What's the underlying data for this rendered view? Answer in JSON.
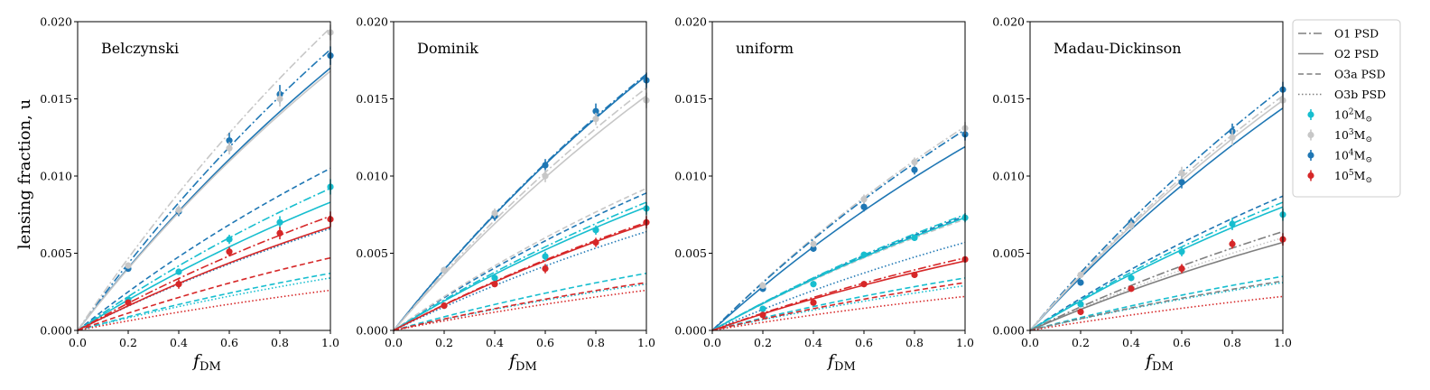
{
  "figure": {
    "ylabel": "lensing fraction, u",
    "xlabel_main": "f",
    "xlabel_sub": "DM"
  },
  "legend": {
    "line_entries": [
      {
        "label": "O1 PSD",
        "style": "dashdot"
      },
      {
        "label": "O2 PSD",
        "style": "solid"
      },
      {
        "label": "O3a PSD",
        "style": "dashed"
      },
      {
        "label": "O3b PSD",
        "style": "dotted"
      }
    ],
    "marker_entries": [
      {
        "base": "10",
        "exp": "2",
        "unit": "M",
        "sub": "⊙",
        "color": "#17becf"
      },
      {
        "base": "10",
        "exp": "3",
        "unit": "M",
        "sub": "⊙",
        "color": "#c7c7c7"
      },
      {
        "base": "10",
        "exp": "4",
        "unit": "M",
        "sub": "⊙",
        "color": "#1f77b4"
      },
      {
        "base": "10",
        "exp": "5",
        "unit": "M",
        "sub": "⊙",
        "color": "#d62728"
      }
    ],
    "line_color": "#7f7f7f"
  },
  "colors": {
    "m2": "#17becf",
    "m3": "#c7c7c7",
    "m4": "#1f77b4",
    "m5": "#d62728",
    "gray": "#7f7f7f"
  },
  "chart_data": [
    {
      "type": "line",
      "title": "Belczynski",
      "xlabel": "f_DM",
      "ylabel": "lensing fraction, u",
      "xlim": [
        0,
        1
      ],
      "ylim": [
        0,
        0.02
      ],
      "xticks": [
        "0.0",
        "0.2",
        "0.4",
        "0.6",
        "0.8",
        "1.0"
      ],
      "yticks": [
        "0.000",
        "0.005",
        "0.010",
        "0.015",
        "0.020"
      ],
      "series": [
        {
          "mass": "1e4",
          "psd": "O1",
          "end": 0.0182
        },
        {
          "mass": "1e4",
          "psd": "O2",
          "end": 0.017
        },
        {
          "mass": "1e4",
          "psd": "O3a",
          "end": 0.0105
        },
        {
          "mass": "1e4",
          "psd": "O3b",
          "end": 0.0066
        },
        {
          "mass": "1e3",
          "psd": "O1",
          "end": 0.0196
        },
        {
          "mass": "1e3",
          "psd": "O2",
          "end": 0.0168
        },
        {
          "mass": "1e2",
          "psd": "O1",
          "end": 0.0092
        },
        {
          "mass": "1e2",
          "psd": "O2",
          "end": 0.0083
        },
        {
          "mass": "1e2",
          "psd": "O3a",
          "end": 0.0037
        },
        {
          "mass": "1e2",
          "psd": "O3b",
          "end": 0.0034
        },
        {
          "mass": "1e5",
          "psd": "O1",
          "end": 0.0074
        },
        {
          "mass": "1e5",
          "psd": "O2",
          "end": 0.0067
        },
        {
          "mass": "1e5",
          "psd": "O3a",
          "end": 0.0047
        },
        {
          "mass": "1e5",
          "psd": "O3b",
          "end": 0.0026
        }
      ],
      "points": [
        {
          "mass": "1e4",
          "x": [
            0.2,
            0.4,
            0.6,
            0.8,
            1.0
          ],
          "y": [
            0.004,
            0.0077,
            0.0123,
            0.0153,
            0.0178
          ],
          "err": [
            0.0002,
            0.0003,
            0.0005,
            0.0006,
            0.0006
          ]
        },
        {
          "mass": "1e3",
          "x": [
            0.2,
            0.4,
            0.6,
            0.8,
            1.0
          ],
          "y": [
            0.0042,
            0.0078,
            0.0118,
            0.015,
            0.0193
          ],
          "err": [
            0.0002,
            0.0003,
            0.0004,
            0.0005,
            0.0005
          ]
        },
        {
          "mass": "1e2",
          "x": [
            0.2,
            0.4,
            0.6,
            0.8,
            1.0
          ],
          "y": [
            0.002,
            0.0038,
            0.0059,
            0.007,
            0.0093
          ],
          "err": [
            0.0002,
            0.0002,
            0.0003,
            0.0004,
            0.0005
          ]
        },
        {
          "mass": "1e5",
          "x": [
            0.2,
            0.4,
            0.6,
            0.8,
            1.0
          ],
          "y": [
            0.0018,
            0.003,
            0.0051,
            0.0063,
            0.0072
          ],
          "err": [
            0.0002,
            0.0003,
            0.0003,
            0.0004,
            0.0005
          ]
        }
      ]
    },
    {
      "type": "line",
      "title": "Dominik",
      "xlabel": "f_DM",
      "ylabel": "",
      "xlim": [
        0,
        1
      ],
      "ylim": [
        0,
        0.02
      ],
      "xticks": [
        "0.0",
        "0.2",
        "0.4",
        "0.6",
        "0.8",
        "1.0"
      ],
      "yticks": [
        "0.000",
        "0.005",
        "0.010",
        "0.015",
        "0.020"
      ],
      "series": [
        {
          "mass": "1e4",
          "psd": "O1",
          "end": 0.0166
        },
        {
          "mass": "1e4",
          "psd": "O2",
          "end": 0.0165
        },
        {
          "mass": "1e4",
          "psd": "O3a",
          "end": 0.0089
        },
        {
          "mass": "1e4",
          "psd": "O3b",
          "end": 0.0064
        },
        {
          "mass": "1e3",
          "psd": "O1",
          "end": 0.0157
        },
        {
          "mass": "1e3",
          "psd": "O2",
          "end": 0.0152
        },
        {
          "mass": "1e3",
          "psd": "O3a",
          "end": 0.0092
        },
        {
          "mass": "1e2",
          "psd": "O1",
          "end": 0.0083
        },
        {
          "mass": "1e2",
          "psd": "O2",
          "end": 0.008
        },
        {
          "mass": "1e2",
          "psd": "O3a",
          "end": 0.0037
        },
        {
          "mass": "1e2",
          "psd": "O3b",
          "end": 0.003
        },
        {
          "mass": "1e5",
          "psd": "O1",
          "end": 0.007
        },
        {
          "mass": "1e5",
          "psd": "O2",
          "end": 0.0069
        },
        {
          "mass": "1e5",
          "psd": "O3a",
          "end": 0.0031
        },
        {
          "mass": "1e5",
          "psd": "O3b",
          "end": 0.0026
        }
      ],
      "points": [
        {
          "mass": "1e4",
          "x": [
            0.2,
            0.4,
            0.6,
            0.8,
            1.0
          ],
          "y": [
            0.0039,
            0.0074,
            0.0107,
            0.0142,
            0.0162
          ],
          "err": [
            0.0002,
            0.0003,
            0.0004,
            0.0005,
            0.0005
          ]
        },
        {
          "mass": "1e3",
          "x": [
            0.2,
            0.4,
            0.6,
            0.8,
            1.0
          ],
          "y": [
            0.0039,
            0.0076,
            0.01,
            0.0137,
            0.0149
          ],
          "err": [
            0.0002,
            0.0003,
            0.0004,
            0.0004,
            0.0005
          ]
        },
        {
          "mass": "1e2",
          "x": [
            0.2,
            0.4,
            0.6,
            0.8,
            1.0
          ],
          "y": [
            0.0016,
            0.0034,
            0.0048,
            0.0065,
            0.0079
          ],
          "err": [
            0.0002,
            0.0002,
            0.0003,
            0.0003,
            0.0004
          ]
        },
        {
          "mass": "1e5",
          "x": [
            0.2,
            0.4,
            0.6,
            0.8,
            1.0
          ],
          "y": [
            0.0016,
            0.003,
            0.004,
            0.0057,
            0.007
          ],
          "err": [
            0.0002,
            0.0002,
            0.0003,
            0.0003,
            0.0004
          ]
        }
      ]
    },
    {
      "type": "line",
      "title": "uniform",
      "xlabel": "f_DM",
      "ylabel": "",
      "xlim": [
        0,
        1
      ],
      "ylim": [
        0,
        0.02
      ],
      "xticks": [
        "0.0",
        "0.2",
        "0.4",
        "0.6",
        "0.8",
        "1.0"
      ],
      "yticks": [
        "0.000",
        "0.005",
        "0.010",
        "0.015",
        "0.020"
      ],
      "series": [
        {
          "mass": "1e3",
          "psd": "O1",
          "end": 0.0132
        },
        {
          "mass": "1e4",
          "psd": "O1",
          "end": 0.013
        },
        {
          "mass": "1e4",
          "psd": "O2",
          "end": 0.0119
        },
        {
          "mass": "1e4",
          "psd": "O3a",
          "end": 0.0074
        },
        {
          "mass": "1e4",
          "psd": "O3b",
          "end": 0.0057
        },
        {
          "mass": "1e3",
          "psd": "O3a",
          "end": 0.0072
        },
        {
          "mass": "1e2",
          "psd": "O1",
          "end": 0.0075
        },
        {
          "mass": "1e2",
          "psd": "O2",
          "end": 0.0073
        },
        {
          "mass": "1e2",
          "psd": "O3a",
          "end": 0.0034
        },
        {
          "mass": "1e2",
          "psd": "O3b",
          "end": 0.0029
        },
        {
          "mass": "1e5",
          "psd": "O1",
          "end": 0.0047
        },
        {
          "mass": "1e5",
          "psd": "O2",
          "end": 0.0045
        },
        {
          "mass": "1e5",
          "psd": "O3a",
          "end": 0.0031
        },
        {
          "mass": "1e5",
          "psd": "O3b",
          "end": 0.0022
        }
      ],
      "points": [
        {
          "mass": "1e4",
          "x": [
            0.2,
            0.4,
            0.6,
            0.8,
            1.0
          ],
          "y": [
            0.0027,
            0.0053,
            0.008,
            0.0104,
            0.0127
          ],
          "err": [
            0.0002,
            0.0002,
            0.0003,
            0.0003,
            0.0004
          ]
        },
        {
          "mass": "1e3",
          "x": [
            0.2,
            0.4,
            0.6,
            0.8,
            1.0
          ],
          "y": [
            0.0029,
            0.0056,
            0.0085,
            0.0109,
            0.0131
          ],
          "err": [
            0.0002,
            0.0002,
            0.0003,
            0.0003,
            0.0004
          ]
        },
        {
          "mass": "1e2",
          "x": [
            0.2,
            0.4,
            0.6,
            0.8,
            1.0
          ],
          "y": [
            0.0014,
            0.003,
            0.0049,
            0.006,
            0.0073
          ],
          "err": [
            0.0001,
            0.0002,
            0.0002,
            0.0002,
            0.0003
          ]
        },
        {
          "mass": "1e5",
          "x": [
            0.2,
            0.4,
            0.6,
            0.8,
            1.0
          ],
          "y": [
            0.001,
            0.0018,
            0.003,
            0.0036,
            0.0046
          ],
          "err": [
            0.0001,
            0.0001,
            0.0002,
            0.0002,
            0.0002
          ]
        }
      ]
    },
    {
      "type": "line",
      "title": "Madau-Dickinson",
      "xlabel": "f_DM",
      "ylabel": "",
      "xlim": [
        0,
        1
      ],
      "ylim": [
        0,
        0.02
      ],
      "xticks": [
        "0.0",
        "0.2",
        "0.4",
        "0.6",
        "0.8",
        "1.0"
      ],
      "yticks": [
        "0.000",
        "0.005",
        "0.010",
        "0.015",
        "0.020"
      ],
      "series": [
        {
          "mass": "1e4",
          "psd": "O1",
          "end": 0.0157
        },
        {
          "mass": "1e4",
          "psd": "O2",
          "end": 0.0144
        },
        {
          "mass": "1e4",
          "psd": "O3a",
          "end": 0.0087
        },
        {
          "mass": "1e3",
          "psd": "O1",
          "end": 0.0152
        },
        {
          "mass": "1e3",
          "psd": "O2",
          "end": 0.0149
        },
        {
          "mass": "1e2",
          "psd": "O1",
          "end": 0.0083
        },
        {
          "mass": "1e2",
          "psd": "O2",
          "end": 0.008
        },
        {
          "mass": "1e2",
          "psd": "O3a",
          "end": 0.0035
        },
        {
          "mass": "1e2",
          "psd": "O3b",
          "end": 0.0031
        },
        {
          "mass": "1e3",
          "psd": "O3b",
          "end": 0.006
        },
        {
          "mass": "gray",
          "psd": "O1",
          "end": 0.0064
        },
        {
          "mass": "gray",
          "psd": "O2",
          "end": 0.0057
        },
        {
          "mass": "gray",
          "psd": "O3a",
          "end": 0.0032
        },
        {
          "mass": "1e5",
          "psd": "O3b",
          "end": 0.0022
        }
      ],
      "points": [
        {
          "mass": "1e4",
          "x": [
            0.2,
            0.4,
            0.6,
            0.8,
            1.0
          ],
          "y": [
            0.0031,
            0.007,
            0.0096,
            0.0129,
            0.0156
          ],
          "err": [
            0.0002,
            0.0003,
            0.0004,
            0.0005,
            0.0005
          ]
        },
        {
          "mass": "1e3",
          "x": [
            0.2,
            0.4,
            0.6,
            0.8,
            1.0
          ],
          "y": [
            0.0036,
            0.0068,
            0.0102,
            0.0125,
            0.0149
          ],
          "err": [
            0.0002,
            0.0003,
            0.0004,
            0.0005,
            0.0005
          ]
        },
        {
          "mass": "1e2",
          "x": [
            0.2,
            0.4,
            0.6,
            0.8,
            1.0
          ],
          "y": [
            0.0017,
            0.0034,
            0.0051,
            0.0069,
            0.0075
          ],
          "err": [
            0.0002,
            0.0002,
            0.0003,
            0.0004,
            0.0004
          ]
        },
        {
          "mass": "1e5",
          "x": [
            0.2,
            0.4,
            0.6,
            0.8,
            1.0
          ],
          "y": [
            0.0012,
            0.0027,
            0.004,
            0.0056,
            0.0059
          ],
          "err": [
            0.0001,
            0.0002,
            0.0003,
            0.0003,
            0.0004
          ]
        }
      ]
    }
  ]
}
